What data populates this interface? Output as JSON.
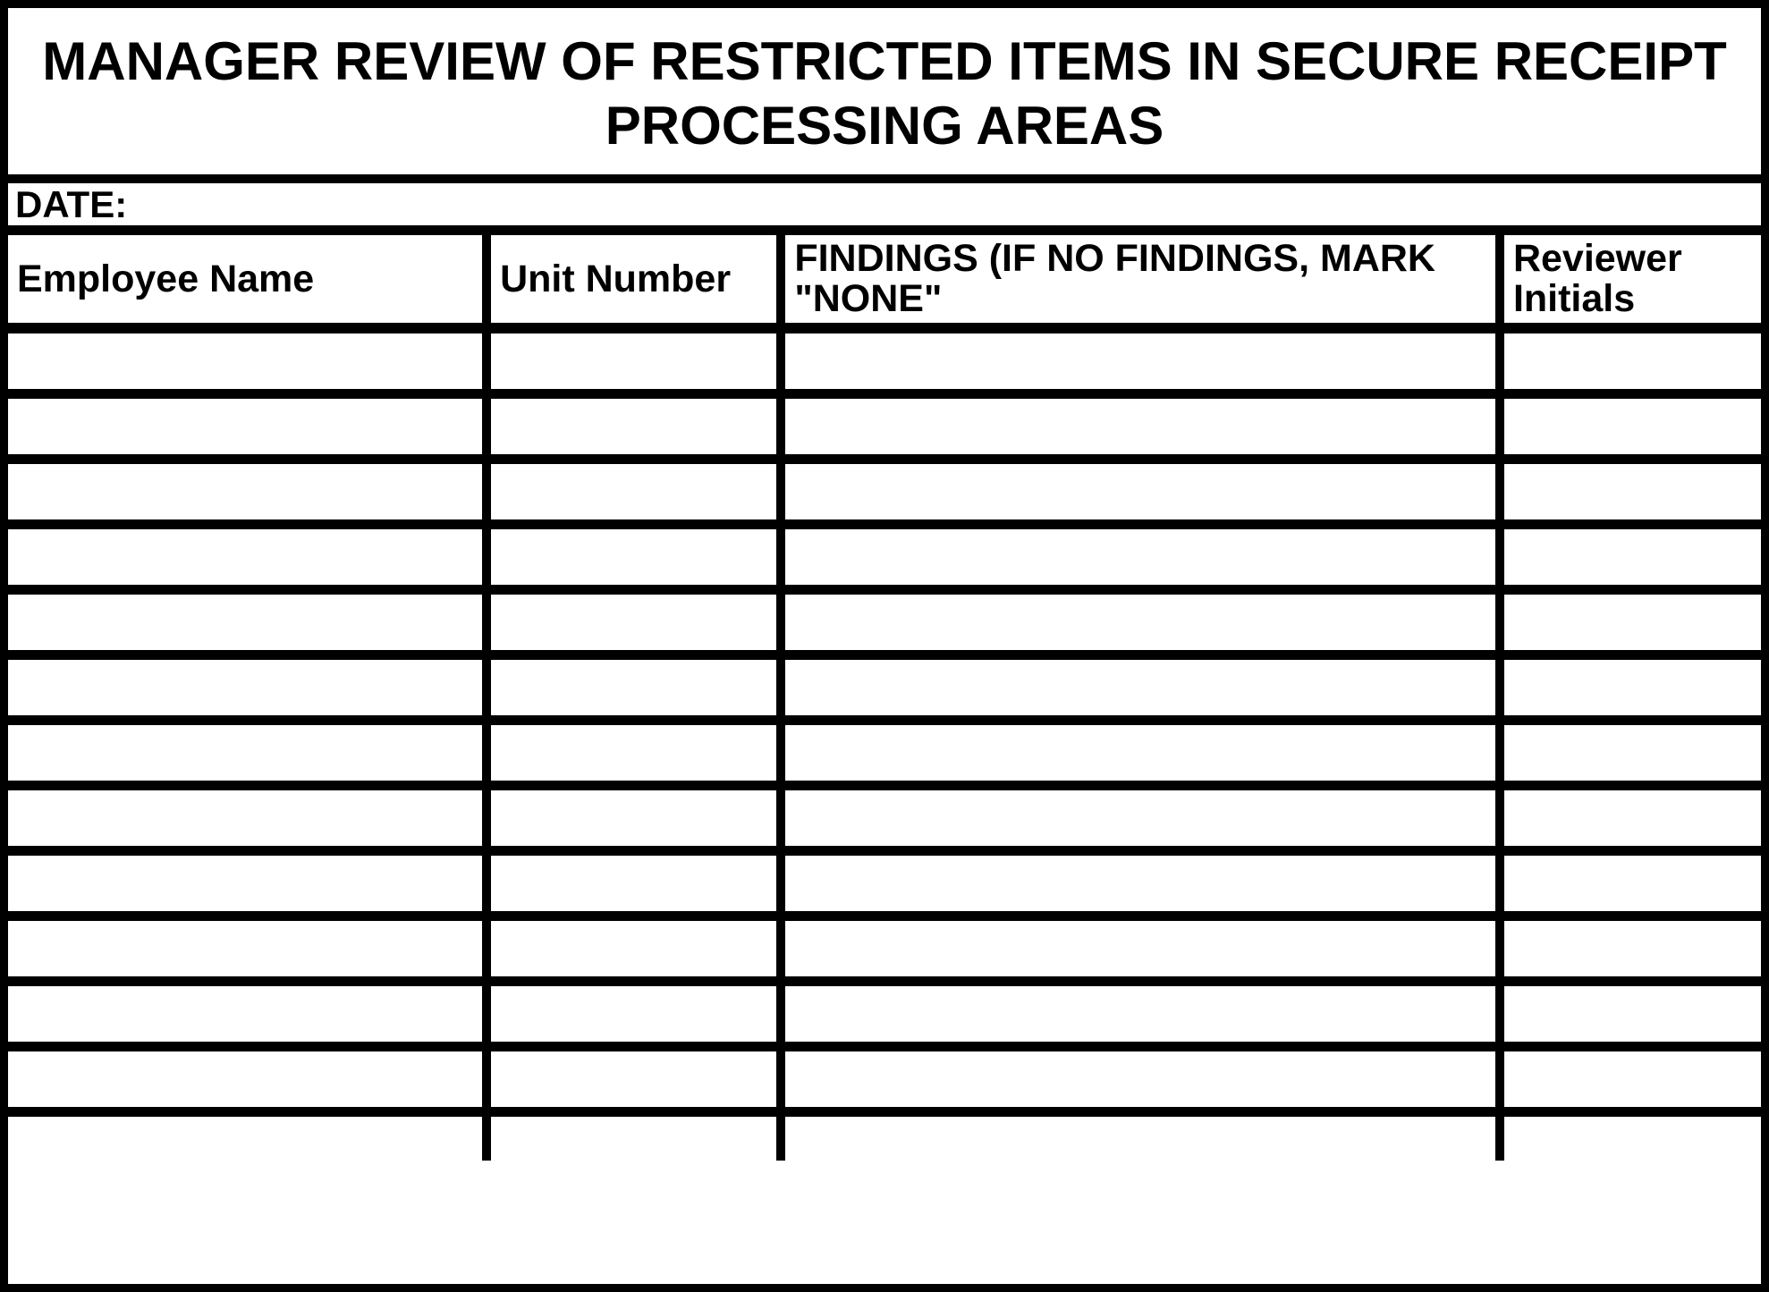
{
  "title": "MANAGER REVIEW OF RESTRICTED ITEMS IN SECURE RECEIPT PROCESSING AREAS",
  "date": {
    "label": "DATE:",
    "value": ""
  },
  "table": {
    "columns": [
      {
        "id": "employee_name",
        "label": "Employee Name"
      },
      {
        "id": "unit_number",
        "label": "Unit Number"
      },
      {
        "id": "findings",
        "label": "FINDINGS (IF NO FINDINGS, MARK \"NONE\""
      },
      {
        "id": "reviewer_initials",
        "label": "Reviewer Initials"
      }
    ],
    "rows": [
      {
        "employee_name": "",
        "unit_number": "",
        "findings": "",
        "reviewer_initials": ""
      },
      {
        "employee_name": "",
        "unit_number": "",
        "findings": "",
        "reviewer_initials": ""
      },
      {
        "employee_name": "",
        "unit_number": "",
        "findings": "",
        "reviewer_initials": ""
      },
      {
        "employee_name": "",
        "unit_number": "",
        "findings": "",
        "reviewer_initials": ""
      },
      {
        "employee_name": "",
        "unit_number": "",
        "findings": "",
        "reviewer_initials": ""
      },
      {
        "employee_name": "",
        "unit_number": "",
        "findings": "",
        "reviewer_initials": ""
      },
      {
        "employee_name": "",
        "unit_number": "",
        "findings": "",
        "reviewer_initials": ""
      },
      {
        "employee_name": "",
        "unit_number": "",
        "findings": "",
        "reviewer_initials": ""
      },
      {
        "employee_name": "",
        "unit_number": "",
        "findings": "",
        "reviewer_initials": ""
      },
      {
        "employee_name": "",
        "unit_number": "",
        "findings": "",
        "reviewer_initials": ""
      },
      {
        "employee_name": "",
        "unit_number": "",
        "findings": "",
        "reviewer_initials": ""
      },
      {
        "employee_name": "",
        "unit_number": "",
        "findings": "",
        "reviewer_initials": ""
      },
      {
        "employee_name": "",
        "unit_number": "",
        "findings": "",
        "reviewer_initials": ""
      }
    ]
  }
}
